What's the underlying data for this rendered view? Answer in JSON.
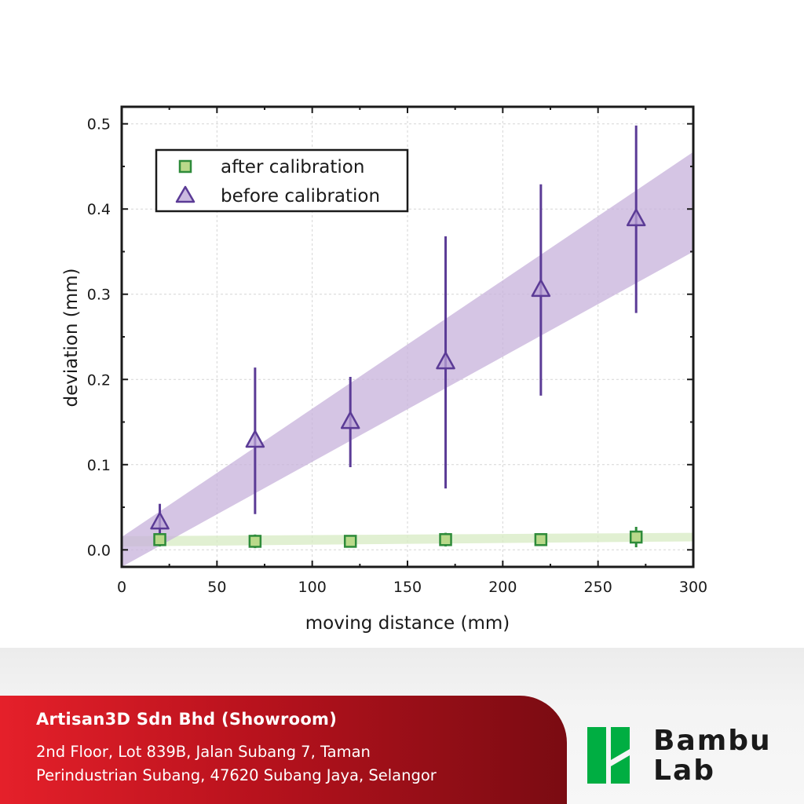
{
  "chart_data": {
    "type": "scatter",
    "xlabel": "moving distance (mm)",
    "ylabel": "deviation (mm)",
    "xlim": [
      0,
      300
    ],
    "ylim": [
      -0.02,
      0.52
    ],
    "xticks": [
      0,
      50,
      100,
      150,
      200,
      250,
      300
    ],
    "yticks": [
      0.0,
      0.1,
      0.2,
      0.3,
      0.4,
      0.5
    ],
    "xtick_labels": [
      "0",
      "50",
      "100",
      "150",
      "200",
      "250",
      "300"
    ],
    "ytick_labels": [
      "0.0",
      "0.1",
      "0.2",
      "0.3",
      "0.4",
      "0.5"
    ],
    "grid": true,
    "legend_position": "top-left",
    "series": [
      {
        "name": "after calibration",
        "marker": "square",
        "color": "#2e8b3a",
        "fill": "#b9d98a",
        "x": [
          20,
          70,
          120,
          170,
          220,
          270
        ],
        "y": [
          0.012,
          0.01,
          0.01,
          0.012,
          0.012,
          0.015
        ],
        "err": [
          0.008,
          0.008,
          0.006,
          0.008,
          0.007,
          0.012
        ],
        "band": {
          "x": [
            0,
            300
          ],
          "lower": [
            0.004,
            0.01
          ],
          "upper": [
            0.016,
            0.02
          ],
          "color": "#d7ebc3"
        }
      },
      {
        "name": "before calibration",
        "marker": "triangle",
        "color": "#5b3b96",
        "fill": "#b9a3d6",
        "x": [
          20,
          70,
          120,
          170,
          220,
          270
        ],
        "y": [
          0.032,
          0.128,
          0.15,
          0.22,
          0.305,
          0.388
        ],
        "err": [
          0.022,
          0.086,
          0.053,
          0.148,
          0.124,
          0.11
        ],
        "band": {
          "x": [
            0,
            300
          ],
          "lower": [
            -0.02,
            0.35
          ],
          "upper": [
            0.015,
            0.467
          ],
          "color": "#c7b1db"
        }
      }
    ]
  },
  "footer": {
    "company": "Artisan3D Sdn Bhd (Showroom)",
    "address_line1": "2nd Floor, Lot 839B, Jalan Subang 7, Taman",
    "address_line2": "Perindustrian Subang, 47620 Subang Jaya, Selangor"
  },
  "brand": {
    "word1": "Bambu",
    "word2": "Lab",
    "color": "#00ae42"
  }
}
